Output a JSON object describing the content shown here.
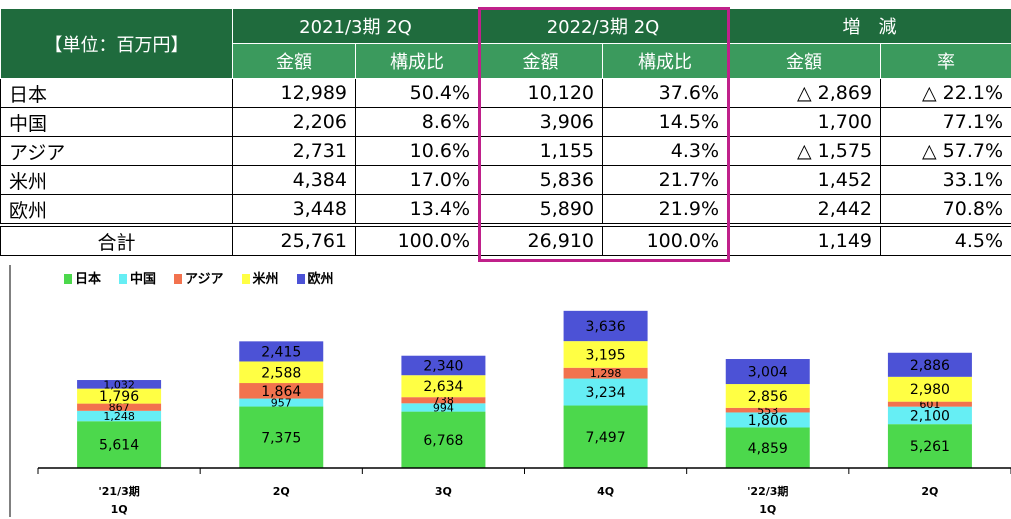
{
  "table": {
    "unit": "【単位：百万円】",
    "groups": [
      "2021/3期 2Q",
      "2022/3期 2Q",
      "増　減"
    ],
    "subheaders": [
      "金額",
      "構成比",
      "金額",
      "構成比",
      "金額",
      "率"
    ],
    "rows": [
      [
        "日本",
        "12,989",
        "50.4%",
        "10,120",
        "37.6%",
        "△ 2,869",
        "△ 22.1%"
      ],
      [
        "中国",
        "2,206",
        "8.6%",
        "3,906",
        "14.5%",
        "1,700",
        "77.1%"
      ],
      [
        "アジア",
        "2,731",
        "10.6%",
        "1,155",
        "4.3%",
        "△ 1,575",
        "△ 57.7%"
      ],
      [
        "米州",
        "4,384",
        "17.0%",
        "5,836",
        "21.7%",
        "1,452",
        "33.1%"
      ],
      [
        "欧州",
        "3,448",
        "13.4%",
        "5,890",
        "21.9%",
        "2,442",
        "70.8%"
      ],
      [
        "合計",
        "25,761",
        "100.0%",
        "26,910",
        "100.0%",
        "1,149",
        "4.5%"
      ]
    ]
  },
  "chart_data": {
    "type": "stacked_bar",
    "categories": [
      "'21/3期\n1Q",
      "2Q",
      "3Q",
      "4Q",
      "'22/3期\n1Q",
      "2Q"
    ],
    "ylim": [
      0,
      21000
    ],
    "legend": "top-left",
    "series": [
      {
        "name": "日本",
        "color": "#4cd84c",
        "values": [
          5614,
          7375,
          6768,
          7497,
          4859,
          5261
        ],
        "value_labels": [
          "5,614",
          "7,375",
          "6,768",
          "7,497",
          "4,859",
          "5,261"
        ]
      },
      {
        "name": "中国",
        "color": "#66eef4",
        "values": [
          1248,
          957,
          994,
          3234,
          1806,
          2100
        ],
        "value_labels": [
          "1,248",
          "957",
          "994",
          "3,234",
          "1,806",
          "2,100"
        ]
      },
      {
        "name": "アジア",
        "color": "#f2724e",
        "values": [
          867,
          1864,
          738,
          1298,
          553,
          601
        ],
        "value_labels": [
          "867",
          "1,864",
          "738",
          "1,298",
          "553",
          "601"
        ]
      },
      {
        "name": "米州",
        "color": "#ffff44",
        "values": [
          1796,
          2588,
          2634,
          3195,
          2856,
          2980
        ],
        "value_labels": [
          "1,796",
          "2,588",
          "2,634",
          "3,195",
          "2,856",
          "2,980"
        ]
      },
      {
        "name": "欧州",
        "color": "#4c52d6",
        "values": [
          1032,
          2415,
          2340,
          3636,
          3004,
          2886
        ],
        "value_labels": [
          "1,032",
          "2,415",
          "2,340",
          "3,636",
          "3,004",
          "2,886"
        ]
      }
    ]
  }
}
